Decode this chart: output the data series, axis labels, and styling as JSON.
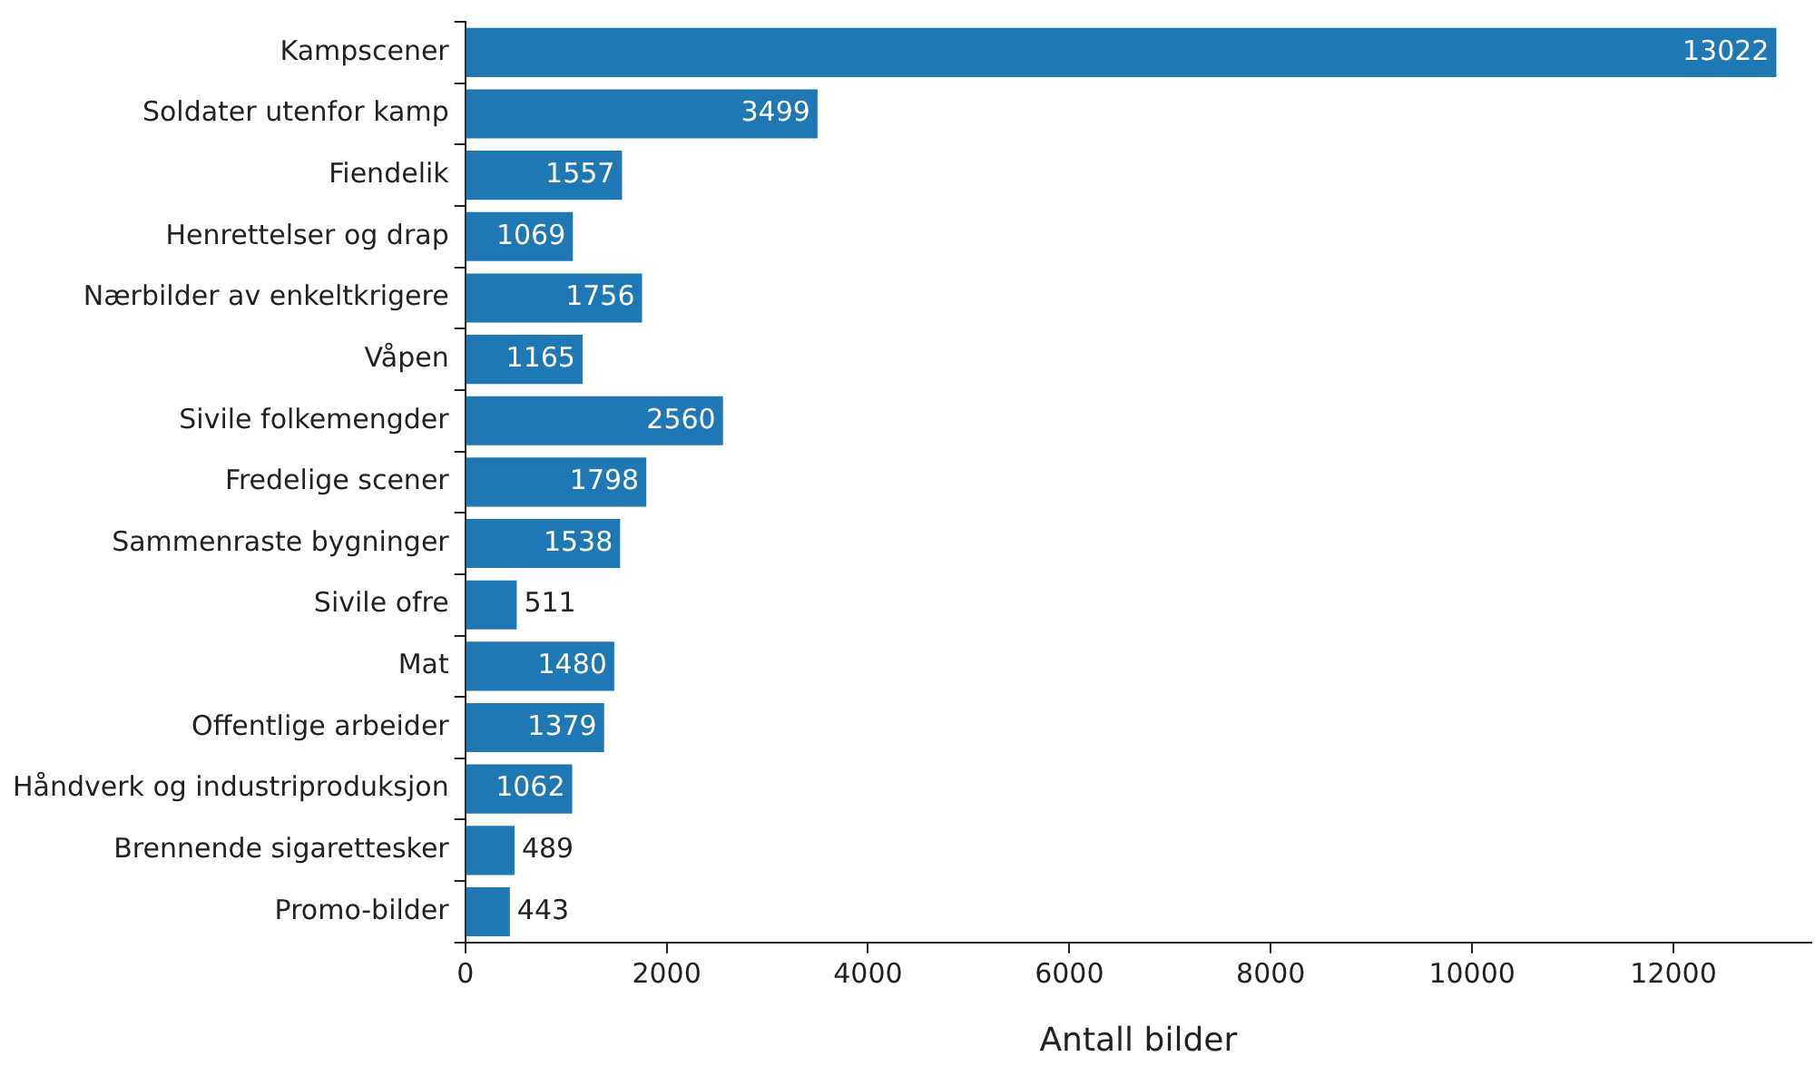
{
  "chart_data": {
    "type": "bar",
    "orientation": "horizontal",
    "xlabel": "Antall bilder",
    "categories": [
      "Kampscener",
      "Soldater utenfor kamp",
      "Fiendelik",
      "Henrettelser og drap",
      "Nærbilder av enkeltkrigere",
      "Våpen",
      "Sivile folkemengder",
      "Fredelige scener",
      "Sammenraste bygninger",
      "Sivile ofre",
      "Mat",
      "Offentlige arbeider",
      "Håndverk og industriproduksjon",
      "Brennende sigarettesker",
      "Promo-bilder"
    ],
    "values": [
      13022,
      3499,
      1557,
      1069,
      1756,
      1165,
      2560,
      1798,
      1538,
      511,
      1480,
      1379,
      1062,
      489,
      443
    ],
    "color": "#1f77b4",
    "xlim": [
      0,
      13370
    ],
    "xticks": [
      0,
      2000,
      4000,
      6000,
      8000,
      10000,
      12000
    ],
    "grid": false,
    "legend": false,
    "data_labels": true
  }
}
